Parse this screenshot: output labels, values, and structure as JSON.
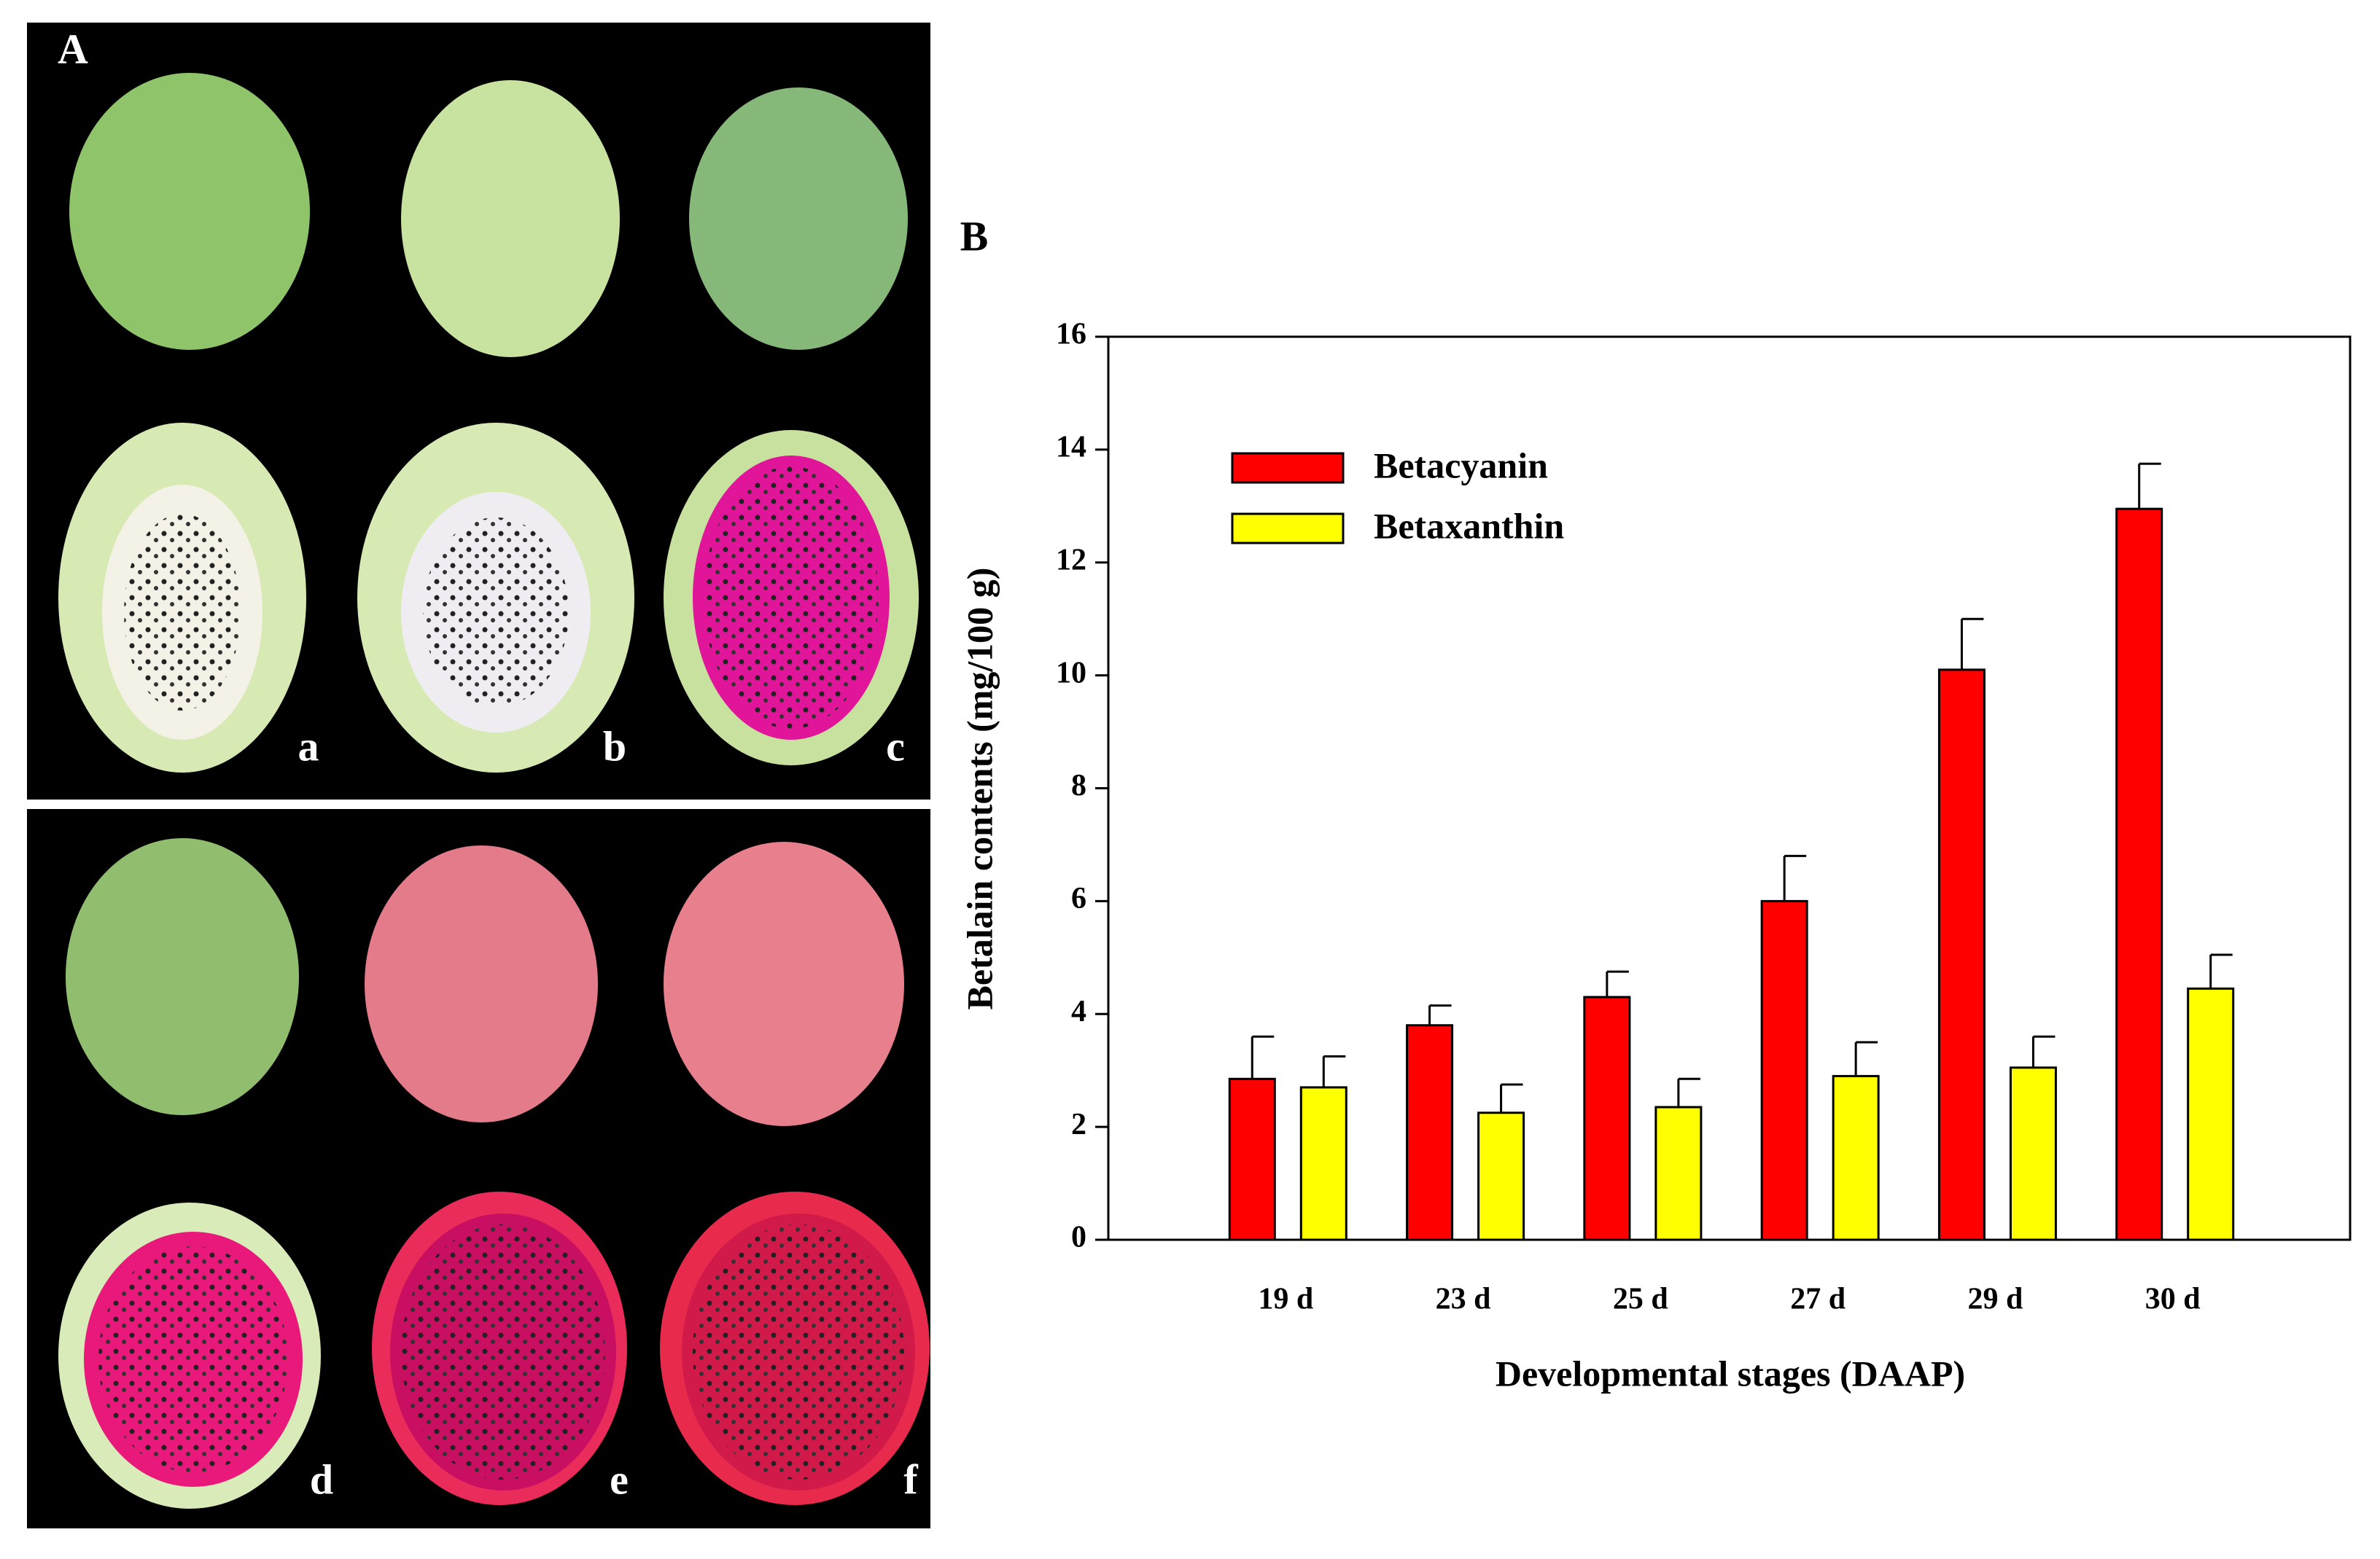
{
  "figure": {
    "panel_a_label": "A",
    "panel_b_label": "B",
    "photo_labels": [
      "a",
      "b",
      "c",
      "d",
      "e",
      "f"
    ]
  },
  "chart_data": {
    "type": "bar",
    "x_label": "Developmental stages (DAAP)",
    "y_label": "Betalain contents (mg/100 g)",
    "categories": [
      "19 d",
      "23 d",
      "25 d",
      "27 d",
      "29 d",
      "30 d"
    ],
    "series": [
      {
        "name": "Betacyanin",
        "color": "#ff0000",
        "values": [
          2.85,
          3.8,
          4.3,
          6.0,
          10.1,
          12.95
        ],
        "errors": [
          0.75,
          0.35,
          0.45,
          0.8,
          0.9,
          0.8
        ]
      },
      {
        "name": "Betaxanthin",
        "color": "#ffff00",
        "values": [
          2.7,
          2.25,
          2.35,
          2.9,
          3.05,
          4.45
        ],
        "errors": [
          0.55,
          0.5,
          0.5,
          0.6,
          0.55,
          0.6
        ]
      }
    ],
    "ylim": [
      0,
      16
    ],
    "yticks": [
      0,
      2,
      4,
      6,
      8,
      10,
      12,
      14,
      16
    ],
    "legend": "upper left"
  }
}
